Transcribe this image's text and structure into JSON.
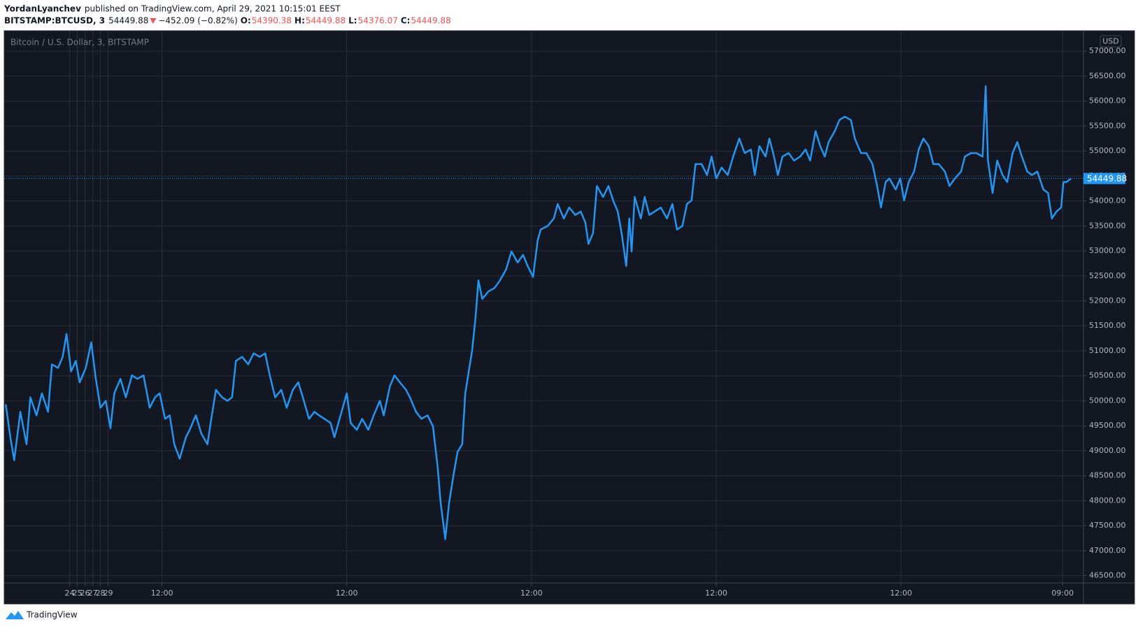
{
  "header": {
    "author": "YordanLyanchev",
    "published": "published on TradingView.com, April 29, 2021 10:15:01 EEST",
    "symbol": "BITSTAMP:BTCUSD, 3",
    "change": "−452.09 (−0.82%)",
    "ohlc": [
      {
        "label": "O:",
        "value": "54390.38"
      },
      {
        "label": "H:",
        "value": "54449.88"
      },
      {
        "label": "L:",
        "value": "54376.07"
      }
    ],
    "close_label": "C:"
  },
  "footer": {
    "brand": "TradingView"
  },
  "chart_data": {
    "type": "line",
    "y_unit": "USD",
    "grid": true,
    "xlim": [
      15.5,
      155.7
    ],
    "xticks": [
      24,
      {
        "value": 36,
        "label": "12:00"
      },
      25,
      {
        "value": 60,
        "label": "12:00"
      },
      26,
      {
        "value": 84,
        "label": "12:00"
      },
      27,
      {
        "value": 108,
        "label": "12:00"
      },
      28,
      {
        "value": 132,
        "label": "12:00"
      },
      29,
      {
        "value": 153,
        "label": "09:00"
      }
    ],
    "ylim": [
      46354,
      57408
    ],
    "yticks": [
      {
        "value": 46500,
        "label": "46500.00"
      },
      {
        "value": 47000,
        "label": "47000.00"
      },
      {
        "value": 47500,
        "label": "47500.00"
      },
      {
        "value": 48000,
        "label": "48000.00"
      },
      {
        "value": 48500,
        "label": "48500.00"
      },
      {
        "value": 49000,
        "label": "49000.00"
      },
      {
        "value": 49500,
        "label": "49500.00"
      },
      {
        "value": 50000,
        "label": "50000.00"
      },
      {
        "value": 50500,
        "label": "50500.00"
      },
      {
        "value": 51000,
        "label": "51000.00"
      },
      {
        "value": 51500,
        "label": "51500.00"
      },
      {
        "value": 52000,
        "label": "52000.00"
      },
      {
        "value": 52500,
        "label": "52500.00"
      },
      {
        "value": 53000,
        "label": "53000.00"
      },
      {
        "value": 53500,
        "label": "53500.00"
      },
      {
        "value": 54000,
        "label": "54000.00"
      },
      {
        "value": 54500,
        "label": "54500.00"
      },
      {
        "value": 55000,
        "label": "55000.00"
      },
      {
        "value": 55500,
        "label": "55500.00"
      },
      {
        "value": 56000,
        "label": "56000.00"
      },
      {
        "value": 56500,
        "label": "56500.00"
      },
      {
        "value": 57000,
        "label": "57000.00"
      }
    ],
    "x": [
      15.7,
      16.3,
      16.8,
      17.6,
      18.4,
      18.9,
      19.7,
      20.4,
      21.2,
      21.7,
      22.5,
      23.1,
      23.6,
      24.2,
      24.8,
      25.3,
      26.1,
      26.8,
      27.4,
      28.0,
      28.7,
      29.3,
      29.8,
      30.6,
      31.3,
      32.1,
      32.8,
      33.6,
      34.4,
      35.1,
      35.7,
      36.4,
      37.0,
      37.6,
      38.3,
      39.1,
      39.6,
      40.4,
      41.1,
      41.9,
      42.4,
      43.0,
      43.8,
      44.5,
      45.1,
      45.6,
      46.4,
      47.2,
      47.9,
      48.7,
      49.4,
      50.0,
      50.7,
      51.5,
      52.2,
      53.0,
      53.7,
      54.3,
      55.1,
      55.8,
      56.4,
      57.1,
      57.9,
      58.4,
      59.2,
      60.0,
      60.5,
      61.3,
      62.0,
      62.8,
      63.5,
      64.3,
      64.8,
      65.6,
      66.2,
      66.9,
      67.7,
      68.2,
      69.0,
      69.7,
      70.5,
      71.2,
      71.8,
      72.2,
      72.8,
      73.3,
      73.9,
      74.4,
      75.0,
      75.4,
      76.0,
      76.3,
      76.7,
      77.1,
      77.6,
      78.4,
      79.2,
      79.9,
      80.7,
      81.4,
      82.2,
      82.9,
      83.5,
      84.2,
      84.8,
      85.2,
      86.1,
      86.9,
      87.4,
      88.2,
      88.9,
      89.7,
      90.4,
      91.0,
      91.4,
      92.0,
      92.5,
      93.3,
      94.0,
      94.6,
      95.2,
      95.7,
      96.3,
      96.7,
      97.0,
      97.4,
      98.2,
      98.7,
      99.3,
      100.0,
      100.8,
      101.6,
      102.3,
      102.9,
      103.6,
      104.2,
      104.8,
      105.3,
      106.1,
      106.8,
      107.4,
      108.0,
      108.7,
      109.5,
      110.2,
      111.0,
      111.7,
      112.5,
      113.0,
      113.6,
      114.4,
      114.9,
      115.5,
      116.0,
      116.6,
      117.4,
      118.1,
      118.9,
      119.6,
      120.2,
      120.9,
      121.5,
      122.1,
      122.6,
      123.4,
      124.0,
      124.7,
      125.5,
      126.0,
      126.8,
      127.5,
      128.3,
      128.9,
      129.4,
      130.0,
      130.5,
      131.3,
      131.9,
      132.4,
      133.0,
      133.7,
      134.3,
      134.9,
      135.6,
      136.2,
      136.9,
      137.7,
      138.3,
      139.0,
      139.8,
      140.3,
      141.1,
      141.8,
      142.6,
      143.0,
      143.3,
      143.9,
      144.5,
      145.2,
      145.8,
      146.5,
      147.1,
      147.7,
      148.4,
      149.0,
      149.7,
      150.5,
      151.1,
      151.6,
      152.2,
      152.8,
      153.1,
      153.5,
      154.1
    ],
    "series": [
      {
        "name": "Bitcoin / U.S. Dollar, 3, BITSTAMP",
        "color": "#2196f3",
        "values": [
          49930,
          49270,
          48810,
          49780,
          49130,
          50070,
          49710,
          50150,
          49780,
          50730,
          50660,
          50880,
          51340,
          50590,
          50800,
          50370,
          50660,
          51170,
          50440,
          49860,
          50000,
          49450,
          50150,
          50440,
          50070,
          50510,
          50440,
          50510,
          49860,
          50070,
          50150,
          49640,
          49710,
          49130,
          48840,
          49270,
          49420,
          49710,
          49350,
          49130,
          49640,
          50220,
          50070,
          50000,
          50070,
          50800,
          50880,
          50730,
          50950,
          50880,
          50950,
          50510,
          50070,
          50220,
          49860,
          50220,
          50370,
          50070,
          49640,
          49780,
          49710,
          49640,
          49560,
          49270,
          49710,
          50150,
          49560,
          49420,
          49640,
          49420,
          49710,
          50000,
          49710,
          50290,
          50510,
          50370,
          50220,
          50070,
          49780,
          49640,
          49710,
          49490,
          48690,
          47960,
          47230,
          47960,
          48540,
          48980,
          49130,
          50150,
          50730,
          51020,
          51610,
          52410,
          52040,
          52190,
          52260,
          52410,
          52630,
          52990,
          52770,
          52920,
          52700,
          52480,
          53210,
          53430,
          53500,
          53650,
          53940,
          53650,
          53870,
          53720,
          53790,
          53570,
          53140,
          53360,
          54300,
          54080,
          54300,
          54010,
          53790,
          53360,
          52700,
          53650,
          52990,
          54080,
          53650,
          54080,
          53720,
          53790,
          53870,
          53650,
          53940,
          53430,
          53500,
          53940,
          54010,
          54740,
          54740,
          54520,
          54890,
          54450,
          54670,
          54520,
          54890,
          55250,
          54960,
          55030,
          54520,
          55100,
          54890,
          55250,
          54890,
          54520,
          54890,
          54960,
          54810,
          54890,
          55030,
          54810,
          55400,
          55100,
          54890,
          55180,
          55400,
          55620,
          55690,
          55620,
          55250,
          54960,
          54960,
          54740,
          54300,
          53870,
          54380,
          54450,
          54230,
          54450,
          54010,
          54380,
          54590,
          55030,
          55250,
          55100,
          54740,
          54740,
          54590,
          54300,
          54450,
          54590,
          54890,
          54960,
          54960,
          54890,
          56300,
          54810,
          54160,
          54810,
          54520,
          54380,
          54960,
          55180,
          54890,
          54590,
          54520,
          54590,
          54230,
          54160,
          53650,
          53790,
          53870,
          54380,
          54380,
          54449.88
        ]
      }
    ]
  }
}
